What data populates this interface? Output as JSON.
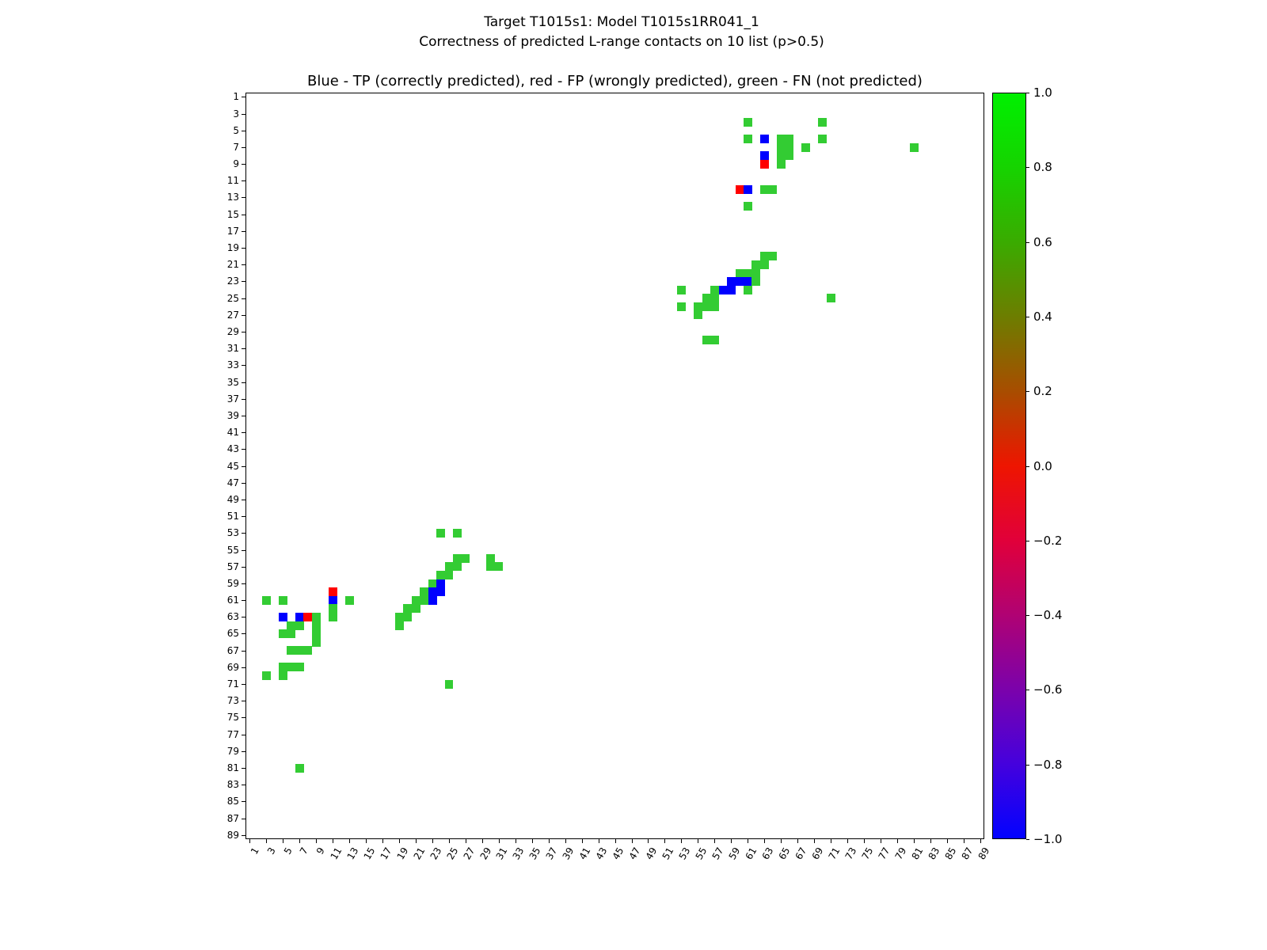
{
  "figure": {
    "suptitle_line1": "Target T1015s1: Model T1015s1RR041_1",
    "suptitle_line2": "Correctness of predicted L-range contacts on 10 list (p>0.5)",
    "axes_title": "Blue - TP (correctly predicted), red - FP (wrongly predicted), green - FN (not predicted)"
  },
  "chart_data": {
    "type": "heatmap",
    "title": "Blue - TP (correctly predicted), red - FP (wrongly predicted), green - FN (not predicted)",
    "x_range": [
      1,
      89
    ],
    "y_range": [
      1,
      89
    ],
    "grid": false,
    "x_ticks": [
      1,
      3,
      5,
      7,
      9,
      11,
      13,
      15,
      17,
      19,
      21,
      23,
      25,
      27,
      29,
      31,
      33,
      35,
      37,
      39,
      41,
      43,
      45,
      47,
      49,
      51,
      53,
      55,
      57,
      59,
      61,
      63,
      65,
      67,
      69,
      71,
      73,
      75,
      77,
      79,
      81,
      83,
      85,
      87,
      89
    ],
    "y_ticks": [
      1,
      3,
      5,
      7,
      9,
      11,
      13,
      15,
      17,
      19,
      21,
      23,
      25,
      27,
      29,
      31,
      33,
      35,
      37,
      39,
      41,
      43,
      45,
      47,
      49,
      51,
      53,
      55,
      57,
      59,
      61,
      63,
      65,
      67,
      69,
      71,
      73,
      75,
      77,
      79,
      81,
      83,
      85,
      87,
      89
    ],
    "legend_meaning": {
      "TP": "correctly predicted",
      "FP": "wrongly predicted",
      "FN": "not predicted"
    },
    "colors": {
      "TP": "#0000ff",
      "FP": "#ff0000",
      "FN": "#33cc33"
    },
    "cells": [
      [
        4,
        61,
        "FN"
      ],
      [
        4,
        70,
        "FN"
      ],
      [
        6,
        61,
        "FN"
      ],
      [
        6,
        63,
        "TP"
      ],
      [
        6,
        65,
        "FN"
      ],
      [
        6,
        66,
        "FN"
      ],
      [
        6,
        70,
        "FN"
      ],
      [
        7,
        65,
        "FN"
      ],
      [
        7,
        66,
        "FN"
      ],
      [
        7,
        68,
        "FN"
      ],
      [
        7,
        81,
        "FN"
      ],
      [
        8,
        63,
        "TP"
      ],
      [
        8,
        65,
        "FN"
      ],
      [
        8,
        66,
        "FN"
      ],
      [
        9,
        63,
        "FP"
      ],
      [
        9,
        65,
        "FN"
      ],
      [
        12,
        60,
        "FP"
      ],
      [
        12,
        61,
        "TP"
      ],
      [
        12,
        63,
        "FN"
      ],
      [
        12,
        64,
        "FN"
      ],
      [
        14,
        61,
        "FN"
      ],
      [
        20,
        63,
        "FN"
      ],
      [
        20,
        64,
        "FN"
      ],
      [
        21,
        62,
        "FN"
      ],
      [
        21,
        63,
        "FN"
      ],
      [
        22,
        60,
        "FN"
      ],
      [
        22,
        61,
        "FN"
      ],
      [
        22,
        62,
        "FN"
      ],
      [
        23,
        59,
        "TP"
      ],
      [
        23,
        60,
        "TP"
      ],
      [
        23,
        61,
        "TP"
      ],
      [
        23,
        62,
        "FN"
      ],
      [
        24,
        53,
        "FN"
      ],
      [
        24,
        57,
        "FN"
      ],
      [
        24,
        58,
        "TP"
      ],
      [
        24,
        59,
        "TP"
      ],
      [
        24,
        61,
        "FN"
      ],
      [
        25,
        56,
        "FN"
      ],
      [
        25,
        57,
        "FN"
      ],
      [
        25,
        71,
        "FN"
      ],
      [
        26,
        53,
        "FN"
      ],
      [
        26,
        55,
        "FN"
      ],
      [
        26,
        56,
        "FN"
      ],
      [
        26,
        57,
        "FN"
      ],
      [
        27,
        55,
        "FN"
      ],
      [
        30,
        56,
        "FN"
      ],
      [
        30,
        57,
        "FN"
      ],
      [
        53,
        24,
        "FN"
      ],
      [
        53,
        26,
        "FN"
      ],
      [
        56,
        26,
        "FN"
      ],
      [
        56,
        27,
        "FN"
      ],
      [
        56,
        30,
        "FN"
      ],
      [
        57,
        25,
        "FN"
      ],
      [
        57,
        26,
        "FN"
      ],
      [
        57,
        30,
        "FN"
      ],
      [
        57,
        31,
        "FN"
      ],
      [
        58,
        24,
        "FN"
      ],
      [
        58,
        25,
        "FN"
      ],
      [
        59,
        23,
        "FN"
      ],
      [
        59,
        24,
        "TP"
      ],
      [
        60,
        11,
        "FP"
      ],
      [
        60,
        22,
        "FN"
      ],
      [
        60,
        23,
        "TP"
      ],
      [
        60,
        24,
        "TP"
      ],
      [
        61,
        3,
        "FN"
      ],
      [
        61,
        5,
        "FN"
      ],
      [
        61,
        11,
        "TP"
      ],
      [
        61,
        13,
        "FN"
      ],
      [
        61,
        21,
        "FN"
      ],
      [
        61,
        22,
        "FN"
      ],
      [
        61,
        23,
        "TP"
      ],
      [
        62,
        11,
        "FN"
      ],
      [
        62,
        20,
        "FN"
      ],
      [
        62,
        21,
        "FN"
      ],
      [
        63,
        5,
        "TP"
      ],
      [
        63,
        7,
        "TP"
      ],
      [
        63,
        8,
        "FP"
      ],
      [
        63,
        9,
        "FN"
      ],
      [
        63,
        11,
        "FN"
      ],
      [
        63,
        19,
        "FN"
      ],
      [
        63,
        20,
        "FN"
      ],
      [
        64,
        6,
        "FN"
      ],
      [
        64,
        7,
        "FN"
      ],
      [
        64,
        9,
        "FN"
      ],
      [
        64,
        19,
        "FN"
      ],
      [
        65,
        5,
        "FN"
      ],
      [
        65,
        6,
        "FN"
      ],
      [
        65,
        9,
        "FN"
      ],
      [
        66,
        9,
        "FN"
      ],
      [
        67,
        6,
        "FN"
      ],
      [
        67,
        7,
        "FN"
      ],
      [
        67,
        8,
        "FN"
      ],
      [
        69,
        5,
        "FN"
      ],
      [
        69,
        6,
        "FN"
      ],
      [
        69,
        7,
        "FN"
      ],
      [
        70,
        3,
        "FN"
      ],
      [
        70,
        5,
        "FN"
      ],
      [
        71,
        25,
        "FN"
      ],
      [
        81,
        7,
        "FN"
      ]
    ],
    "colorbar": {
      "tick_labels": [
        "1.0",
        "0.8",
        "0.6",
        "0.4",
        "0.2",
        "0.0",
        "−0.2",
        "−0.4",
        "−0.6",
        "−0.8",
        "−1.0"
      ],
      "gradient_stops": [
        {
          "pos": 0.0,
          "color": "#00f000"
        },
        {
          "pos": 0.1,
          "color": "#16d300"
        },
        {
          "pos": 0.2,
          "color": "#3aab00"
        },
        {
          "pos": 0.3,
          "color": "#6d7d00"
        },
        {
          "pos": 0.4,
          "color": "#a84d00"
        },
        {
          "pos": 0.5,
          "color": "#ee1500"
        },
        {
          "pos": 0.6,
          "color": "#e1003a"
        },
        {
          "pos": 0.7,
          "color": "#b00273"
        },
        {
          "pos": 0.8,
          "color": "#7b02ab"
        },
        {
          "pos": 0.9,
          "color": "#4501dd"
        },
        {
          "pos": 1.0,
          "color": "#0202ff"
        }
      ]
    }
  }
}
